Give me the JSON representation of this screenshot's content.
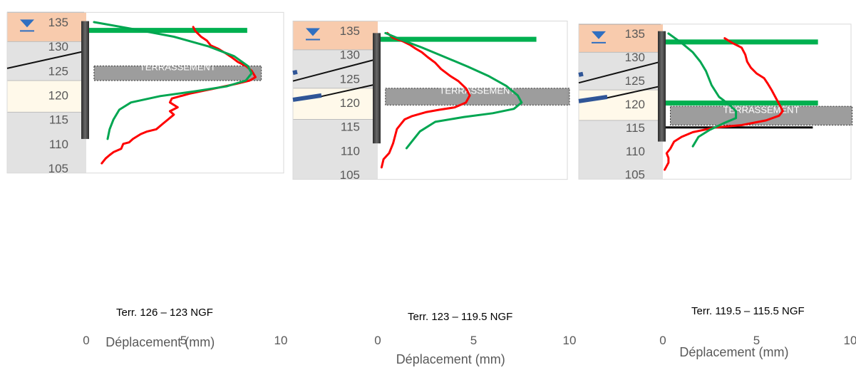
{
  "chart_data": [
    {
      "type": "line",
      "xlabel": "Déplacement (mm)",
      "xlim": [
        0,
        10
      ],
      "ylim": [
        104,
        137
      ],
      "xticks": [
        "0",
        "5",
        "10"
      ],
      "yticks": [
        "135",
        "130",
        "125",
        "120",
        "115",
        "110",
        "105"
      ],
      "annotation": "Terr. 126 – 123 NGF",
      "excavation_label": "TERRASSEMENT",
      "excavation_range": [
        123,
        126
      ],
      "layers": [
        {
          "top": 137,
          "bottom": 131,
          "color": "#f8cbad"
        },
        {
          "top": 131,
          "bottom": 123,
          "color": "#e2e2e2"
        },
        {
          "top": 123,
          "bottom": 116.5,
          "color": "#fff9ea"
        },
        {
          "top": 116.5,
          "bottom": 104,
          "color": "#e2e2e2"
        }
      ],
      "wall": {
        "top": 135.2,
        "bottom": 111
      },
      "struts": [
        133.3
      ],
      "series": [
        {
          "color": "#ff0000",
          "x": [
            5.5,
            5.6,
            5.9,
            6.2,
            6.4,
            6.8,
            7.2,
            7.5,
            7.8,
            8.2,
            8.5,
            8.7,
            8.4,
            7.7,
            6.5,
            5.3,
            4.4,
            4.3,
            4.7,
            4.3,
            4.5,
            4.2,
            3.9,
            3.6,
            3.1,
            2.8,
            2.4,
            2.2,
            1.9,
            1.8,
            1.4,
            1.2,
            1.0,
            0.8
          ],
          "y": [
            134,
            133.2,
            132,
            131.2,
            130.2,
            129.5,
            128.5,
            127.7,
            126.8,
            126,
            125,
            123.7,
            123,
            122.3,
            121.3,
            120.3,
            119.3,
            118.5,
            117.5,
            116.7,
            116,
            115,
            114,
            113,
            112.5,
            112,
            111,
            110.3,
            110,
            109,
            108.3,
            107.7,
            107,
            106
          ]
        },
        {
          "color": "#00a651",
          "x": [
            0.4,
            2.5,
            4.5,
            6.3,
            7.6,
            8.3,
            8.5,
            8.2,
            7.2,
            5.6,
            3.8,
            2.3,
            1.7,
            1.4,
            1.2,
            1.1
          ],
          "y": [
            135,
            133.5,
            132,
            130,
            128,
            126,
            124.5,
            123,
            121.8,
            120.8,
            119.8,
            118.5,
            117,
            115,
            113,
            111
          ]
        }
      ]
    },
    {
      "type": "line",
      "xlabel": "Déplacement (mm)",
      "xlim": [
        0,
        10
      ],
      "ylim": [
        104,
        137
      ],
      "xticks": [
        "0",
        "5",
        "10"
      ],
      "yticks": [
        "135",
        "130",
        "125",
        "120",
        "115",
        "110",
        "105"
      ],
      "annotation": "Terr. 123 – 119.5 NGF",
      "excavation_label": "TERRASSEMENT",
      "excavation_range": [
        119.5,
        123
      ],
      "layers": [
        {
          "top": 137,
          "bottom": 131,
          "color": "#f8cbad"
        },
        {
          "top": 131,
          "bottom": 123,
          "color": "#e2e2e2"
        },
        {
          "top": 123,
          "bottom": 116.5,
          "color": "#fff9ea"
        },
        {
          "top": 116.5,
          "bottom": 104,
          "color": "#e2e2e2"
        }
      ],
      "wall": {
        "top": 134.5,
        "bottom": 111.5
      },
      "struts": [
        133.2
      ],
      "series": [
        {
          "color": "#ff0000",
          "x": [
            0.5,
            0.8,
            1.3,
            1.7,
            2.0,
            2.3,
            2.6,
            3.0,
            3.3,
            3.8,
            4.2,
            4.6,
            4.8,
            4.6,
            4.0,
            3.2,
            2.5,
            1.8,
            1.4,
            1.2,
            1.0,
            0.9,
            0.8,
            0.6,
            0.3,
            0.2
          ],
          "y": [
            134.5,
            133.5,
            132.8,
            132,
            131.2,
            130.5,
            129.5,
            128.3,
            127,
            125.5,
            124.5,
            123,
            121.5,
            120,
            119,
            118.5,
            118,
            117.2,
            116.5,
            115.5,
            114.5,
            113,
            111.5,
            109.5,
            108.2,
            106.5
          ]
        },
        {
          "color": "#00a651",
          "x": [
            0.4,
            1.3,
            2.3,
            3.5,
            4.7,
            5.8,
            6.7,
            7.3,
            7.5,
            7.1,
            6.0,
            4.5,
            3.0,
            2.2,
            1.8,
            1.5
          ],
          "y": [
            134.5,
            133,
            131.5,
            129.5,
            127.5,
            125.5,
            123.5,
            121.5,
            120,
            118.7,
            117.8,
            117,
            116,
            114,
            112,
            110.5
          ]
        }
      ]
    },
    {
      "type": "line",
      "xlabel": "Déplacement (mm)",
      "xlim": [
        0,
        10
      ],
      "ylim": [
        104,
        137
      ],
      "xticks": [
        "0",
        "5",
        "10"
      ],
      "yticks": [
        "135",
        "130",
        "125",
        "120",
        "115",
        "110",
        "105"
      ],
      "annotation": "Terr. 119.5 – 115.5 NGF",
      "excavation_label": "TERRASSEMENT",
      "excavation_range": [
        115.5,
        119.5
      ],
      "layers": [
        {
          "top": 137,
          "bottom": 131,
          "color": "#f8cbad"
        },
        {
          "top": 131,
          "bottom": 123,
          "color": "#e2e2e2"
        },
        {
          "top": 123,
          "bottom": 116.5,
          "color": "#fff9ea"
        },
        {
          "top": 116.5,
          "bottom": 104,
          "color": "#e2e2e2"
        }
      ],
      "wall": {
        "top": 135.5,
        "bottom": 112
      },
      "struts": [
        133.2,
        120.2
      ],
      "raft": 115,
      "series": [
        {
          "color": "#ff0000",
          "x": [
            3.3,
            3.7,
            4.2,
            4.4,
            4.5,
            4.7,
            5.0,
            5.4,
            5.6,
            5.8,
            6.0,
            6.2,
            6.4,
            6.2,
            5.5,
            4.2,
            2.8,
            1.6,
            1.0,
            0.6,
            0.4,
            0.2,
            0.3,
            0.3,
            0.1
          ],
          "y": [
            134,
            133,
            132,
            130.5,
            129,
            127.7,
            126.5,
            125.5,
            124.3,
            123,
            121.5,
            120,
            118.5,
            117.5,
            116.5,
            115.5,
            115,
            114,
            113,
            112,
            110.5,
            109.5,
            108.5,
            107.5,
            106
          ]
        },
        {
          "color": "#00a651",
          "x": [
            0.3,
            1.0,
            1.6,
            2.0,
            2.3,
            2.6,
            3.0,
            3.5,
            3.9,
            3.9,
            3.3,
            2.5,
            1.9,
            1.6
          ],
          "y": [
            135,
            133,
            131,
            129,
            127,
            124,
            121.5,
            120,
            118.5,
            117,
            116,
            114.5,
            113,
            111
          ]
        }
      ]
    }
  ]
}
